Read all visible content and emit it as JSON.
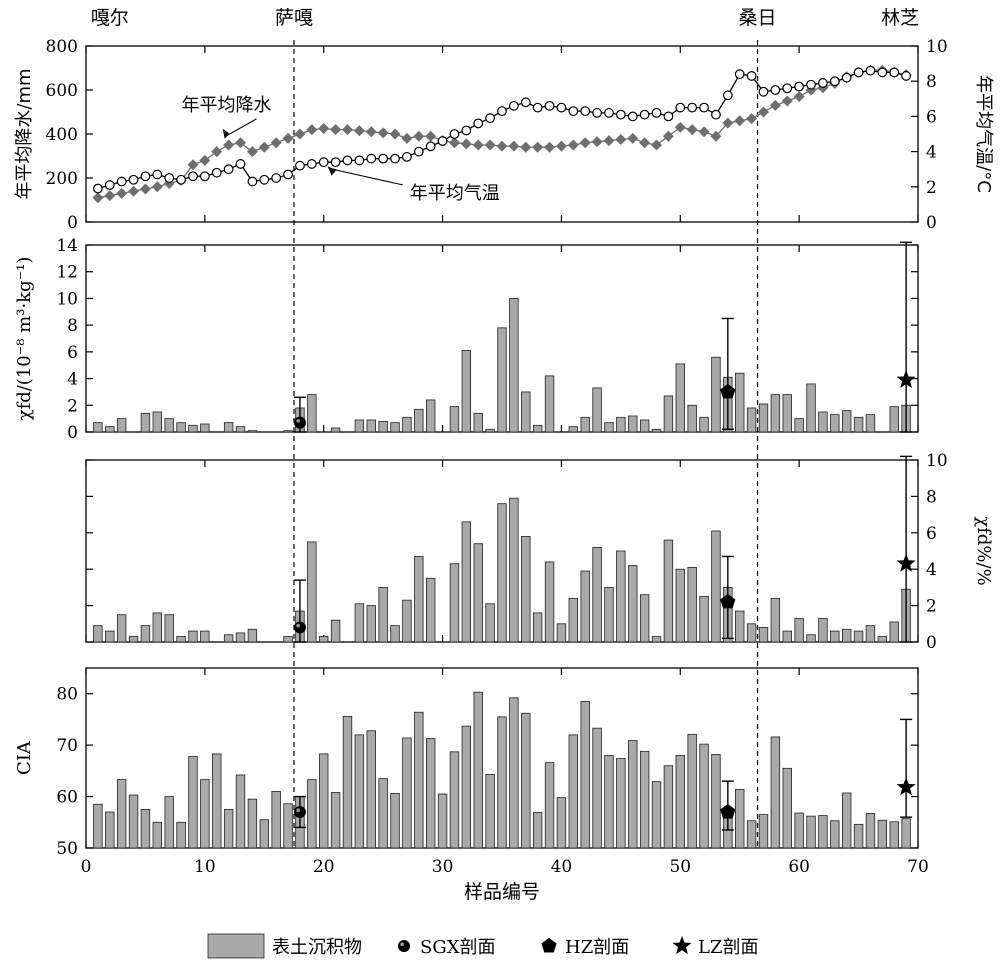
{
  "chart_data": {
    "type": "multi-panel",
    "x_axis": {
      "label": "样品编号",
      "xlim": [
        0,
        70
      ],
      "ticks": [
        0,
        10,
        20,
        30,
        40,
        50,
        60,
        70
      ],
      "tick_labels": [
        "0",
        "10",
        "20",
        "30",
        "40",
        "50",
        "60",
        "70"
      ]
    },
    "site_labels": [
      {
        "text": "嘎尔",
        "x": 2
      },
      {
        "text": "萨嘎",
        "x": 17.5
      },
      {
        "text": "桑日",
        "x": 56.5
      },
      {
        "text": "林芝",
        "x": 68.5
      }
    ],
    "dividers": [
      17.5,
      56.5
    ],
    "legend": {
      "placement": "bottom",
      "items": [
        {
          "label": "表土沉积物",
          "marker": "bar"
        },
        {
          "label": "SGX剖面",
          "marker": "circle"
        },
        {
          "label": "HZ剖面",
          "marker": "pentagon"
        },
        {
          "label": "LZ剖面",
          "marker": "star"
        }
      ]
    },
    "panels": [
      {
        "id": "climate",
        "ylabel_left": "年平均降水/mm",
        "ylim_left": [
          0,
          800
        ],
        "yticks_left": [
          0,
          200,
          400,
          600,
          800
        ],
        "ylabel_right": "年平均气温/°C",
        "ylim_right": [
          0,
          10
        ],
        "yticks_right": [
          0,
          2,
          4,
          6,
          8,
          10
        ],
        "annotations": [
          {
            "text": "年平均降水",
            "x": 13.5,
            "y_axis": "left",
            "y": 505
          },
          {
            "text": "年平均气温",
            "x": 28.5,
            "y_axis": "left",
            "y": 105
          }
        ],
        "series": [
          {
            "name": "年平均降水",
            "axis": "left",
            "marker": "diamond",
            "color": "#6e6e6e",
            "x": [
              1,
              2,
              3,
              4,
              5,
              6,
              7,
              8,
              9,
              10,
              11,
              12,
              13,
              14,
              15,
              16,
              17,
              18,
              19,
              20,
              21,
              22,
              23,
              24,
              25,
              26,
              27,
              28,
              29,
              30,
              31,
              32,
              33,
              34,
              35,
              36,
              37,
              38,
              39,
              40,
              41,
              42,
              43,
              44,
              45,
              46,
              47,
              48,
              49,
              50,
              51,
              52,
              53,
              54,
              55,
              56,
              57,
              58,
              59,
              60,
              61,
              62,
              63,
              64,
              65,
              66,
              67,
              68,
              69
            ],
            "values": [
              110,
              120,
              130,
              140,
              150,
              160,
              175,
              190,
              260,
              280,
              320,
              350,
              360,
              320,
              340,
              360,
              380,
              400,
              420,
              425,
              420,
              420,
              415,
              410,
              405,
              400,
              380,
              390,
              390,
              370,
              360,
              355,
              350,
              350,
              345,
              345,
              340,
              340,
              340,
              345,
              350,
              360,
              365,
              370,
              375,
              380,
              360,
              350,
              390,
              430,
              420,
              410,
              390,
              450,
              460,
              470,
              500,
              530,
              550,
              570,
              600,
              610,
              630,
              660,
              680,
              690,
              690,
              680,
              670
            ]
          },
          {
            "name": "年平均气温",
            "axis": "right",
            "marker": "open-circle",
            "color": "#000000",
            "x": [
              1,
              2,
              3,
              4,
              5,
              6,
              7,
              8,
              9,
              10,
              11,
              12,
              13,
              14,
              15,
              16,
              17,
              18,
              19,
              20,
              21,
              22,
              23,
              24,
              25,
              26,
              27,
              28,
              29,
              30,
              31,
              32,
              33,
              34,
              35,
              36,
              37,
              38,
              39,
              40,
              41,
              42,
              43,
              44,
              45,
              46,
              47,
              48,
              49,
              50,
              51,
              52,
              53,
              54,
              55,
              56,
              57,
              58,
              59,
              60,
              61,
              62,
              63,
              64,
              65,
              66,
              67,
              68,
              69
            ],
            "values": [
              1.9,
              2.1,
              2.3,
              2.4,
              2.6,
              2.7,
              2.5,
              2.4,
              2.6,
              2.6,
              2.8,
              3.0,
              3.3,
              2.3,
              2.4,
              2.5,
              2.7,
              3.2,
              3.3,
              3.4,
              3.4,
              3.5,
              3.5,
              3.6,
              3.6,
              3.6,
              3.7,
              4.0,
              4.3,
              4.6,
              5.0,
              5.2,
              5.6,
              5.9,
              6.3,
              6.6,
              6.8,
              6.5,
              6.6,
              6.5,
              6.3,
              6.3,
              6.2,
              6.2,
              6.1,
              6.0,
              6.1,
              6.2,
              6.0,
              6.5,
              6.5,
              6.5,
              6.1,
              7.2,
              8.4,
              8.3,
              7.4,
              7.5,
              7.6,
              7.7,
              7.8,
              7.9,
              8.0,
              8.2,
              8.5,
              8.6,
              8.5,
              8.5,
              8.3
            ]
          }
        ]
      },
      {
        "id": "chi-fd",
        "ylabel_left": "χfd/(10⁻⁸ m³·kg⁻¹)",
        "ylim_left": [
          0,
          14
        ],
        "yticks_left": [
          0,
          2,
          4,
          6,
          8,
          10,
          12,
          14
        ],
        "bars": {
          "name": "表土沉积物",
          "x": [
            1,
            2,
            3,
            4,
            5,
            6,
            7,
            8,
            9,
            10,
            11,
            12,
            13,
            14,
            15,
            16,
            17,
            18,
            19,
            20,
            21,
            22,
            23,
            24,
            25,
            26,
            27,
            28,
            29,
            30,
            31,
            32,
            33,
            34,
            35,
            36,
            37,
            38,
            39,
            40,
            41,
            42,
            43,
            44,
            45,
            46,
            47,
            48,
            49,
            50,
            51,
            52,
            53,
            54,
            55,
            56,
            57,
            58,
            59,
            60,
            61,
            62,
            63,
            64,
            65,
            66,
            67,
            68,
            69
          ],
          "values": [
            0.7,
            0.4,
            1.0,
            0.0,
            1.4,
            1.5,
            1.0,
            0.7,
            0.5,
            0.6,
            0.0,
            0.7,
            0.4,
            0.1,
            0.0,
            0.0,
            0.1,
            1.8,
            2.8,
            0.0,
            0.3,
            0.0,
            0.9,
            0.9,
            0.8,
            0.7,
            1.1,
            1.7,
            2.4,
            0.0,
            1.9,
            6.1,
            1.4,
            0.2,
            7.8,
            10.0,
            3.0,
            0.5,
            4.2,
            0.0,
            0.4,
            1.1,
            3.3,
            0.7,
            1.1,
            1.2,
            0.9,
            0.2,
            2.7,
            5.1,
            2.0,
            1.1,
            5.6,
            4.1,
            4.4,
            1.8,
            2.1,
            2.8,
            2.8,
            1.0,
            3.6,
            1.5,
            1.3,
            1.6,
            1.1,
            1.3,
            0.0,
            1.9,
            2.0
          ]
        },
        "points": [
          {
            "name": "SGX剖面",
            "marker": "circle",
            "x": 18,
            "y": 0.7,
            "err_low": 0.0,
            "err_high": 2.6
          },
          {
            "name": "HZ剖面",
            "marker": "pentagon",
            "x": 54,
            "y": 3.0,
            "err_low": 0.2,
            "err_high": 8.5
          },
          {
            "name": "LZ剖面",
            "marker": "star",
            "x": 69,
            "y": 3.9,
            "err_low": 0.0,
            "err_high": 14.2
          }
        ]
      },
      {
        "id": "chi-fd-pct",
        "ylabel_right": "χfd%/%",
        "ylim_right": [
          0,
          10
        ],
        "yticks_right": [
          0,
          2,
          4,
          6,
          8,
          10
        ],
        "bars": {
          "name": "表土沉积物",
          "x": [
            1,
            2,
            3,
            4,
            5,
            6,
            7,
            8,
            9,
            10,
            11,
            12,
            13,
            14,
            15,
            16,
            17,
            18,
            19,
            20,
            21,
            22,
            23,
            24,
            25,
            26,
            27,
            28,
            29,
            30,
            31,
            32,
            33,
            34,
            35,
            36,
            37,
            38,
            39,
            40,
            41,
            42,
            43,
            44,
            45,
            46,
            47,
            48,
            49,
            50,
            51,
            52,
            53,
            54,
            55,
            56,
            57,
            58,
            59,
            60,
            61,
            62,
            63,
            64,
            65,
            66,
            67,
            68,
            69
          ],
          "values": [
            0.9,
            0.6,
            1.5,
            0.3,
            0.9,
            1.6,
            1.5,
            0.3,
            0.6,
            0.6,
            0.0,
            0.4,
            0.5,
            0.7,
            0.0,
            0.0,
            0.3,
            1.7,
            5.5,
            0.3,
            1.2,
            0.0,
            2.1,
            2.0,
            3.0,
            0.9,
            2.3,
            4.7,
            3.5,
            0.0,
            4.3,
            6.6,
            5.4,
            2.1,
            7.6,
            7.9,
            5.8,
            1.6,
            4.4,
            1.0,
            2.4,
            3.9,
            5.2,
            3.0,
            5.0,
            4.2,
            2.6,
            0.3,
            5.6,
            4.0,
            4.1,
            2.5,
            6.1,
            3.0,
            1.7,
            1.0,
            0.8,
            2.4,
            0.6,
            1.3,
            0.4,
            1.3,
            0.6,
            0.7,
            0.6,
            0.9,
            0.3,
            1.1,
            2.9
          ]
        },
        "points": [
          {
            "name": "SGX剖面",
            "marker": "circle",
            "x": 18,
            "y": 0.8,
            "err_low": 0.0,
            "err_high": 3.4
          },
          {
            "name": "HZ剖面",
            "marker": "pentagon",
            "x": 54,
            "y": 2.2,
            "err_low": 0.2,
            "err_high": 4.7
          },
          {
            "name": "LZ剖面",
            "marker": "star",
            "x": 69,
            "y": 4.3,
            "err_low": 0.0,
            "err_high": 10.2
          }
        ]
      },
      {
        "id": "cia",
        "ylabel_left": "CIA",
        "ylim_left": [
          50,
          85
        ],
        "yticks_left": [
          50,
          60,
          70,
          80
        ],
        "bars": {
          "name": "表土沉积物",
          "x": [
            1,
            2,
            3,
            4,
            5,
            6,
            7,
            8,
            9,
            10,
            11,
            12,
            13,
            14,
            15,
            16,
            17,
            18,
            19,
            20,
            21,
            22,
            23,
            24,
            25,
            26,
            27,
            28,
            29,
            30,
            31,
            32,
            33,
            34,
            35,
            36,
            37,
            38,
            39,
            40,
            41,
            42,
            43,
            44,
            45,
            46,
            47,
            48,
            49,
            50,
            51,
            52,
            53,
            54,
            55,
            56,
            57,
            58,
            59,
            60,
            61,
            62,
            63,
            64,
            65,
            66,
            67,
            68,
            69
          ],
          "values": [
            58.5,
            57.0,
            63.3,
            60.3,
            57.5,
            55.0,
            60.0,
            55.0,
            67.8,
            63.3,
            68.3,
            57.5,
            64.2,
            59.5,
            55.5,
            61.0,
            58.6,
            60.0,
            63.3,
            68.3,
            60.8,
            75.6,
            72.0,
            72.8,
            63.5,
            60.6,
            71.4,
            76.4,
            71.3,
            60.5,
            68.7,
            73.7,
            80.3,
            64.3,
            75.5,
            79.2,
            76.2,
            56.9,
            66.6,
            59.8,
            72.0,
            78.5,
            73.3,
            68.0,
            67.4,
            70.9,
            68.8,
            62.9,
            66.0,
            68.0,
            72.1,
            70.2,
            68.2,
            57.0,
            61.4,
            55.3,
            56.5,
            71.6,
            65.5,
            56.8,
            56.2,
            56.3,
            55.3,
            60.7,
            54.6,
            56.7,
            55.4,
            55.1,
            55.7
          ]
        },
        "points": [
          {
            "name": "SGX剖面",
            "marker": "circle",
            "x": 18,
            "y": 57.0,
            "err_low": 54.0,
            "err_high": 60.0
          },
          {
            "name": "HZ剖面",
            "marker": "pentagon",
            "x": 54,
            "y": 57.0,
            "err_low": 53.5,
            "err_high": 63.0
          },
          {
            "name": "LZ剖面",
            "marker": "star",
            "x": 69,
            "y": 61.8,
            "err_low": 56.0,
            "err_high": 75.0
          }
        ]
      }
    ]
  }
}
